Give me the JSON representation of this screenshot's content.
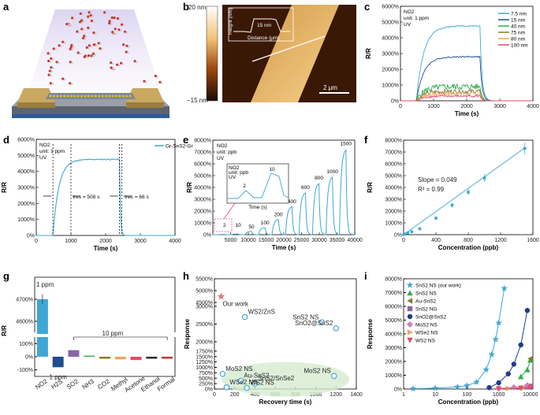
{
  "figure": {
    "panel_letters": [
      "a",
      "b",
      "c",
      "d",
      "e",
      "f",
      "g",
      "h",
      "i"
    ]
  },
  "panel_b": {
    "scale_top": "20 nm",
    "scale_bottom": "−15 nm",
    "inset_ylabel": "Height (nm)",
    "inset_xlabel": "Distance (μm)",
    "inset_step": "15 nm",
    "scalebar": "2 μm"
  },
  "chart_data": [
    {
      "id": "c",
      "type": "line",
      "title_lines": [
        "NO2",
        "unit: 1 ppm",
        "UV"
      ],
      "xlabel": "Time (s)",
      "ylabel": "R/R",
      "xlim": [
        0,
        4000
      ],
      "ylim": [
        0,
        6000
      ],
      "xticks": [
        "0",
        "1000",
        "2000",
        "3000",
        "4000"
      ],
      "yticks": [
        "0%",
        "1000%",
        "2000%",
        "3000%",
        "4000%",
        "5000%",
        "6000%"
      ],
      "series": [
        {
          "name": "7.5 nm",
          "color": "#3fa7d6",
          "plateau": 4750
        },
        {
          "name": "15 nm",
          "color": "#1f4e8c",
          "plateau": 2800
        },
        {
          "name": "40 nm",
          "color": "#2fae4a",
          "plateau": 900
        },
        {
          "name": "75 nm",
          "color": "#8a7a2a",
          "plateau": 600
        },
        {
          "name": "80 nm",
          "color": "#f0a35e",
          "plateau": 450
        },
        {
          "name": "100 nm",
          "color": "#e64a6b",
          "plateau": 300
        }
      ]
    },
    {
      "id": "d",
      "type": "line",
      "title_lines": [
        "NO2",
        "unit: 1 ppm",
        "UV"
      ],
      "legend": "Gr-SnS2-Gr",
      "xlabel": "Time (s)",
      "ylabel": "R/R",
      "xlim": [
        0,
        4000
      ],
      "ylim": [
        0,
        6000
      ],
      "xticks": [
        "0",
        "1000",
        "2000",
        "3000",
        "4000"
      ],
      "yticks": [
        "0%",
        "1000%",
        "2000%",
        "3000%",
        "4000%",
        "5000%",
        "6000%"
      ],
      "annotations": [
        "tres = 508 s",
        "trec = 66 s"
      ],
      "on": 480,
      "off": 2400,
      "plateau": 4750
    },
    {
      "id": "e",
      "type": "line",
      "title_lines": [
        "NO2",
        "unit: ppb",
        "UV"
      ],
      "xlabel": "Time (s)",
      "ylabel": "R/R",
      "xlim": [
        0,
        40000
      ],
      "ylim": [
        0,
        8000
      ],
      "xticks": [
        "5000",
        "10000",
        "15000",
        "20000",
        "25000",
        "30000",
        "35000",
        "40000"
      ],
      "yticks": [
        "0%",
        "1000%",
        "2000%",
        "3000%",
        "4000%",
        "5000%",
        "6000%",
        "7000%",
        "8000%"
      ],
      "concentrations": [
        "2",
        "10",
        "50",
        "100",
        "200",
        "400",
        "600",
        "800",
        "1000",
        "1500"
      ],
      "peaks": [
        20,
        60,
        280,
        600,
        1300,
        2400,
        3600,
        4400,
        4950,
        7300
      ],
      "inset_title": [
        "NO2",
        "unit: ppb",
        "UV"
      ],
      "inset_labels": [
        "2",
        "10"
      ],
      "inset_xlabel": "Time (s)"
    },
    {
      "id": "f",
      "type": "scatter",
      "xlabel": "Concentration (ppb)",
      "ylabel": "R/R",
      "xlim": [
        0,
        1600
      ],
      "ylim": [
        0,
        8000
      ],
      "xticks": [
        "0",
        "400",
        "800",
        "1200",
        "1600"
      ],
      "yticks": [
        "0%",
        "1000%",
        "2000%",
        "3000%",
        "4000%",
        "5000%",
        "6000%",
        "7000%",
        "8000%"
      ],
      "x": [
        2,
        10,
        50,
        100,
        200,
        400,
        600,
        800,
        1000,
        1500
      ],
      "y": [
        20,
        60,
        150,
        250,
        500,
        1400,
        2500,
        3600,
        4800,
        7300
      ],
      "slope_text": "Slope = 0.049",
      "r2_text": "R² = 0.99"
    },
    {
      "id": "g",
      "type": "bar",
      "ylabel": "R/R",
      "categories": [
        "NO2",
        "H2S",
        "SO2",
        "NH3",
        "CO2",
        "Methyl",
        "Acetone",
        "Ethanol",
        "Formal"
      ],
      "values": [
        4700,
        -80,
        50,
        8,
        -15,
        -20,
        -25,
        -15,
        -15
      ],
      "colors": [
        "#3fa7d6",
        "#1f4e8c",
        "#8a63a8",
        "#2fae4a",
        "#8a7a2a",
        "#f0a35e",
        "#e64a6b",
        "#2b2b2b",
        "#c0392b"
      ],
      "yticks_top": [
        "4600%",
        "4700%"
      ],
      "yticks_bottom": [
        "-100%",
        "0%",
        "100%"
      ],
      "labels": [
        "1 ppm",
        "1 ppm",
        "10 ppm"
      ]
    },
    {
      "id": "h",
      "type": "scatter",
      "xlabel": "Recovery time (s)",
      "ylabel": "Response",
      "xlim": [
        0,
        1400
      ],
      "xticks": [
        "0",
        "200",
        "400",
        "600",
        "800",
        "1000",
        "1200",
        "1400"
      ],
      "yticks": [
        "0%",
        "250%",
        "500%",
        "750%",
        "1000%",
        "1250%",
        "1500%",
        "1750%",
        "2000%",
        "2500%",
        "3000%",
        "4500%",
        "5000%",
        "5500%"
      ],
      "points": [
        {
          "name": "Our work",
          "x": 66,
          "y": 4750
        },
        {
          "name": "WS2/ZnS",
          "x": 300,
          "y": 2700
        },
        {
          "name": "SnS2 NS",
          "x": 1060,
          "y": 2550
        },
        {
          "name": "SnO2@SnS2",
          "x": 1200,
          "y": 2380
        },
        {
          "name": "MoS2 NS",
          "x": 1180,
          "y": 600
        },
        {
          "name": "MoS2 NS",
          "x": 80,
          "y": 700
        },
        {
          "name": "Au-SnS2",
          "x": 260,
          "y": 380
        },
        {
          "name": "SnS2/SnSe2",
          "x": 400,
          "y": 250
        },
        {
          "name": "WSe2 NS",
          "x": 120,
          "y": 80
        },
        {
          "name": "WS2 NS",
          "x": 320,
          "y": 50
        }
      ],
      "our_work_label": "Our work"
    },
    {
      "id": "i",
      "type": "line",
      "xlabel": "Concentration (ppb)",
      "ylabel": "Response",
      "xscale": "log",
      "xticks": [
        "1",
        "10",
        "100",
        "1000",
        "10000"
      ],
      "yticks": [
        "0%",
        "1000%",
        "2000%",
        "3000%",
        "4000%",
        "5000%",
        "6000%",
        "7000%",
        "8000%"
      ],
      "series": [
        {
          "name": "SnS2 NS (our work)",
          "color": "#3fa7d6",
          "marker": "star",
          "pts": [
            [
              2,
              20
            ],
            [
              10,
              60
            ],
            [
              50,
              150
            ],
            [
              100,
              250
            ],
            [
              200,
              500
            ],
            [
              400,
              1400
            ],
            [
              600,
              2500
            ],
            [
              800,
              3600
            ],
            [
              1000,
              4800
            ],
            [
              1500,
              7300
            ]
          ]
        },
        {
          "name": "SnS2 NS",
          "color": "#2fae4a",
          "marker": "tri",
          "pts": [
            [
              5000,
              900
            ],
            [
              8000,
              1400
            ],
            [
              10000,
              2100
            ]
          ]
        },
        {
          "name": "Au-SnS2",
          "color": "#8a7a2a",
          "marker": "tril",
          "pts": [
            [
              10000,
              2200
            ]
          ]
        },
        {
          "name": "SnS2 NG",
          "color": "#8a63a8",
          "marker": "sq",
          "pts": [
            [
              8000,
              150
            ],
            [
              10000,
              200
            ]
          ]
        },
        {
          "name": "SnO2@SnS2",
          "color": "#1f3c8c",
          "marker": "circle",
          "pts": [
            [
              500,
              100
            ],
            [
              1000,
              450
            ],
            [
              2000,
              1100
            ],
            [
              3000,
              1800
            ],
            [
              5000,
              3200
            ],
            [
              8000,
              5700
            ]
          ]
        },
        {
          "name": "MoS2 NS",
          "color": "#d17fc0",
          "marker": "diamond",
          "pts": [
            [
              1000,
              40
            ],
            [
              3000,
              120
            ],
            [
              8000,
              280
            ]
          ]
        },
        {
          "name": "WSe2 NS",
          "color": "#f0a35e",
          "marker": "trir",
          "pts": [
            [
              2000,
              40
            ],
            [
              6000,
              80
            ]
          ]
        },
        {
          "name": "WS2 NS",
          "color": "#e64a6b",
          "marker": "trid",
          "pts": [
            [
              1000,
              20
            ],
            [
              5000,
              60
            ],
            [
              10000,
              120
            ]
          ]
        }
      ]
    }
  ]
}
